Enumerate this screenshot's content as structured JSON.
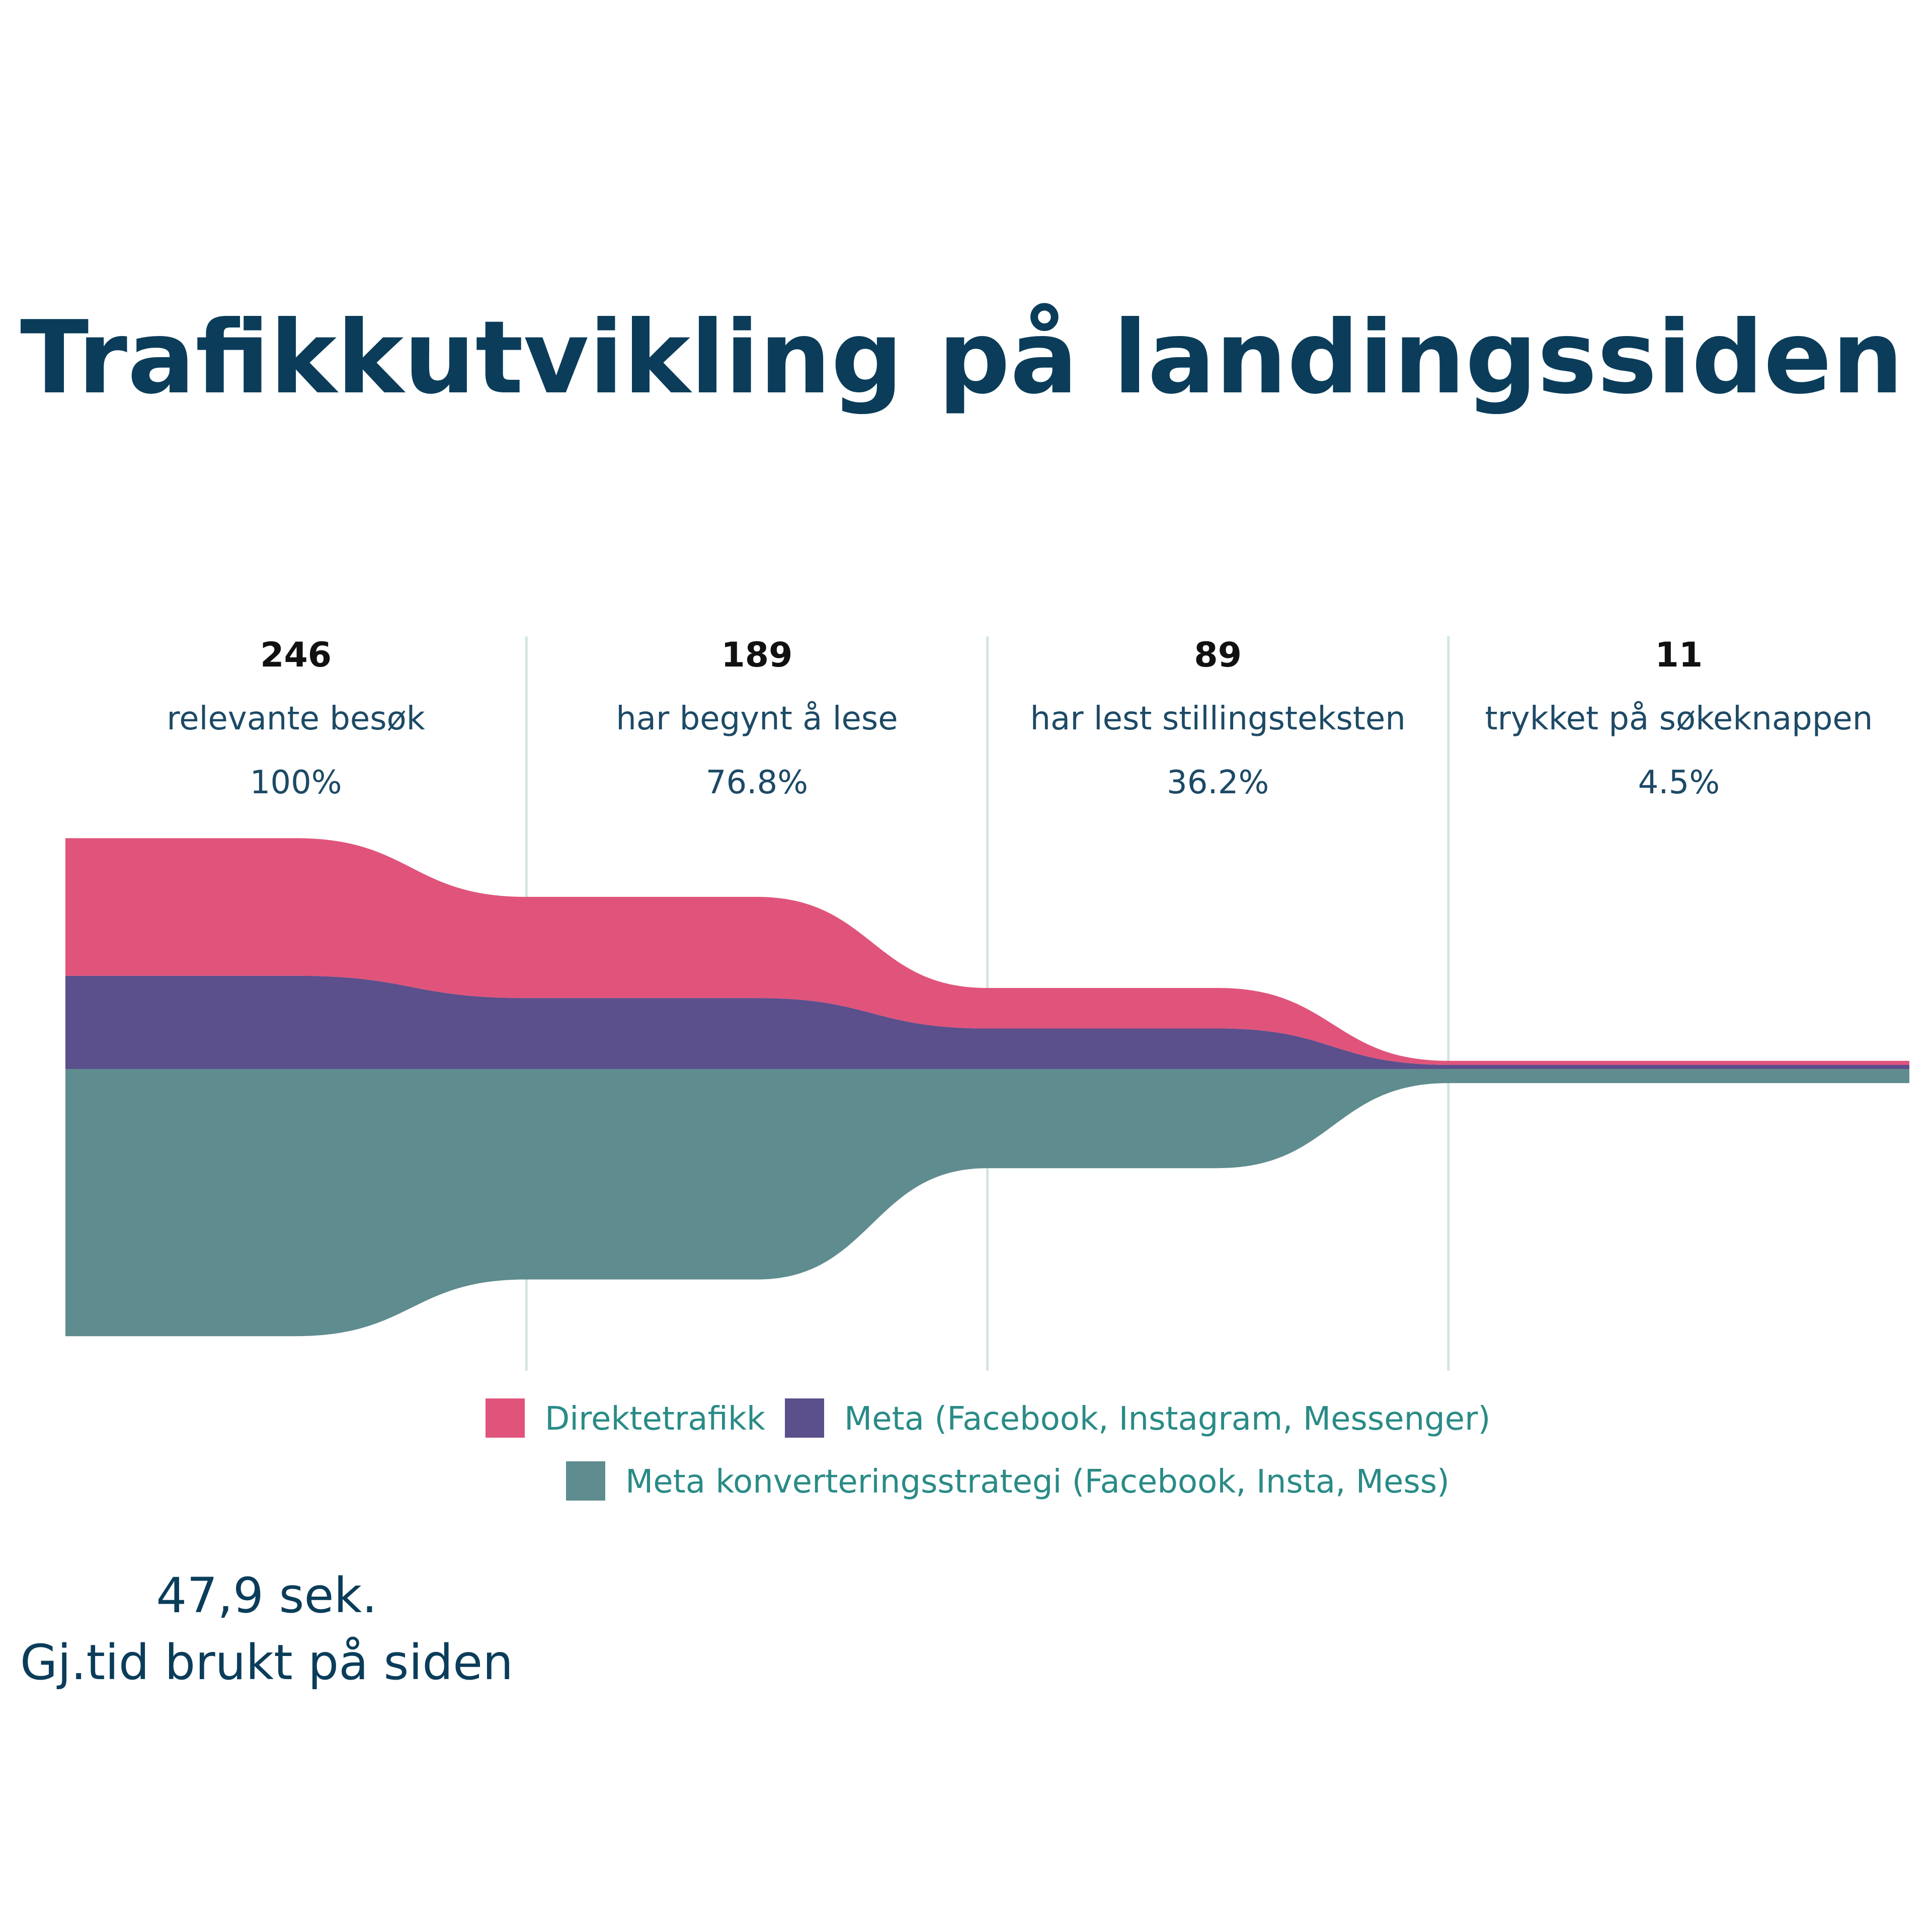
{
  "colors": {
    "title": "#0b3d5a",
    "value": "#111111",
    "label": "#1d4a66",
    "legend_text": "#2a8b86",
    "divider": "#d3e5e1",
    "series": [
      "#e0547b",
      "#5b4f8c",
      "#5f8c8e"
    ]
  },
  "chart_data": {
    "type": "area",
    "title": "Trafikkutvikling på landingssiden",
    "stages": [
      {
        "value": "246",
        "label": "relevante besøk",
        "percent": "100%"
      },
      {
        "value": "189",
        "label": "har begynt å lese",
        "percent": "76.8%"
      },
      {
        "value": "89",
        "label": "har lest stillingsteksten",
        "percent": "36.2%"
      },
      {
        "value": "11",
        "label": "trykket på søkeknappen",
        "percent": "4.5%"
      }
    ],
    "series": [
      {
        "name": "Direktetrafikk",
        "values": [
          68,
          50,
          20,
          2
        ]
      },
      {
        "name": "Meta (Facebook, Instagram, Messenger)",
        "values": [
          46,
          35,
          20,
          2
        ]
      },
      {
        "name": "Meta konverteringsstrategi (Facebook, Insta, Mess)",
        "values": [
          132,
          104,
          49,
          7
        ]
      }
    ],
    "legend_position": "bottom-center"
  },
  "kpi": {
    "value": "47,9 sek.",
    "label": "Gj.tid brukt på siden"
  }
}
